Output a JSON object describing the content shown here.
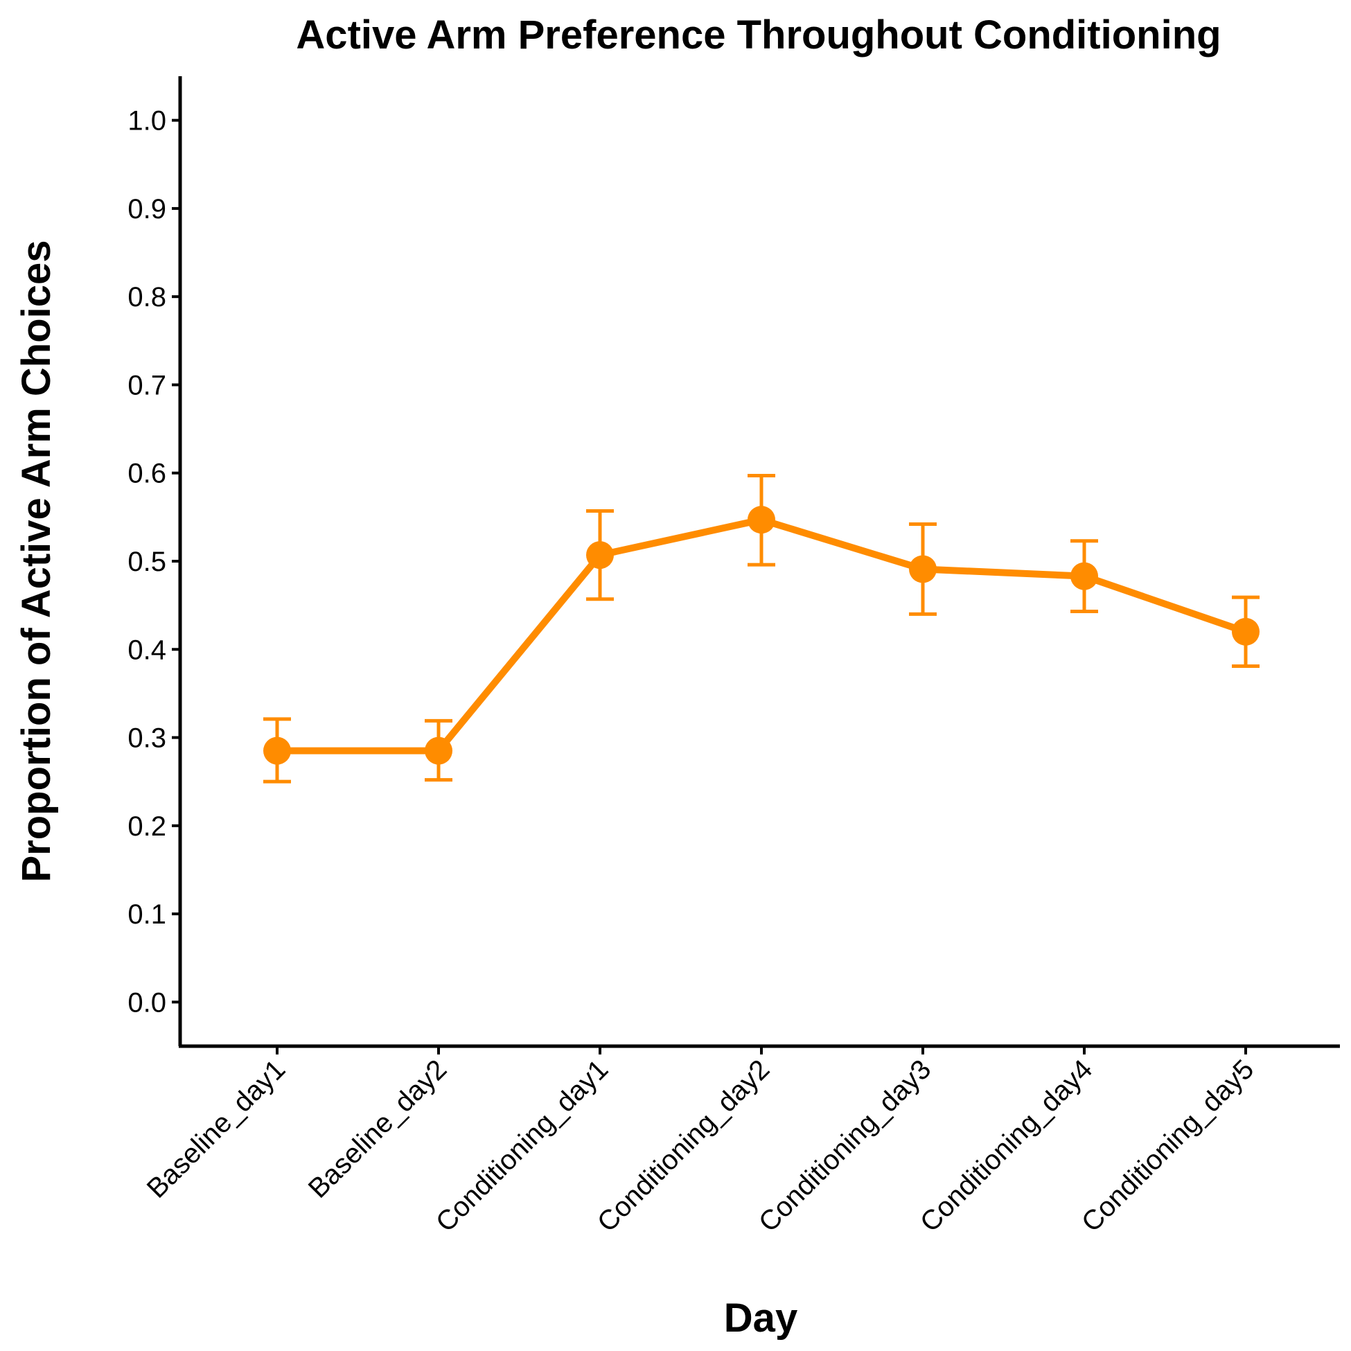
{
  "chart_data": {
    "type": "line",
    "title": "Active Arm Preference Throughout Conditioning",
    "xlabel": "Day",
    "ylabel": "Proportion of Active Arm Choices",
    "categories": [
      "Baseline_day1",
      "Baseline_day2",
      "Conditioning_day1",
      "Conditioning_day2",
      "Conditioning_day3",
      "Conditioning_day4",
      "Conditioning_day5"
    ],
    "series": [
      {
        "values": [
          0.285,
          0.285,
          0.507,
          0.547,
          0.491,
          0.483,
          0.42
        ],
        "error_lower": [
          0.25,
          0.252,
          0.457,
          0.496,
          0.44,
          0.443,
          0.381
        ],
        "error_upper": [
          0.321,
          0.319,
          0.557,
          0.597,
          0.542,
          0.523,
          0.459
        ],
        "color": "#FF8C00"
      }
    ],
    "ylim": [
      -0.05,
      1.05
    ],
    "yticks": [
      "0.0",
      "0.1",
      "0.2",
      "0.3",
      "0.4",
      "0.5",
      "0.6",
      "0.7",
      "0.8",
      "0.9",
      "1.0"
    ],
    "grid": false,
    "legend": "none"
  }
}
